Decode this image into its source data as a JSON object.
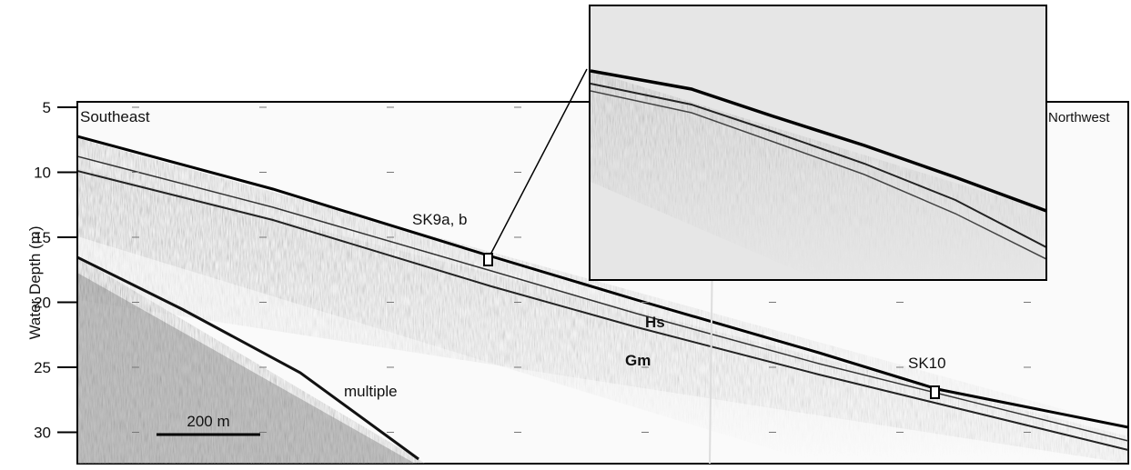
{
  "figure": {
    "y_axis": {
      "label": "Water Depth (m)",
      "ticks": [
        5,
        10,
        15,
        20,
        25,
        30
      ]
    },
    "labels": {
      "left": "Southeast",
      "right": "Northwest",
      "core_a": "SK9a, b",
      "core_b": "SK10",
      "unit_upper": "Hs",
      "unit_lower": "Gm",
      "multiple": "multiple",
      "scale_bar": "200 m"
    }
  }
}
